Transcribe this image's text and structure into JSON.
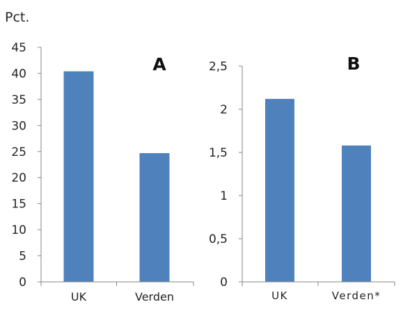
{
  "unit_label": "Pct.",
  "bar_color": "#4f81bd",
  "chart_data": [
    {
      "type": "bar",
      "panel": "A",
      "categories": [
        "UK",
        "Verden"
      ],
      "values": [
        40.4,
        24.7
      ],
      "ylim": [
        0,
        45
      ],
      "yticks": [
        "0",
        "5",
        "10",
        "15",
        "20",
        "25",
        "30",
        "35",
        "40",
        "45"
      ],
      "grid": false
    },
    {
      "type": "bar",
      "panel": "B",
      "categories": [
        "UK",
        "Verden*"
      ],
      "values": [
        2.12,
        1.58
      ],
      "ylim": [
        0,
        2.5
      ],
      "yticks": [
        "0",
        "0,5",
        "1",
        "1,5",
        "2",
        "2,5"
      ],
      "grid": false
    }
  ]
}
